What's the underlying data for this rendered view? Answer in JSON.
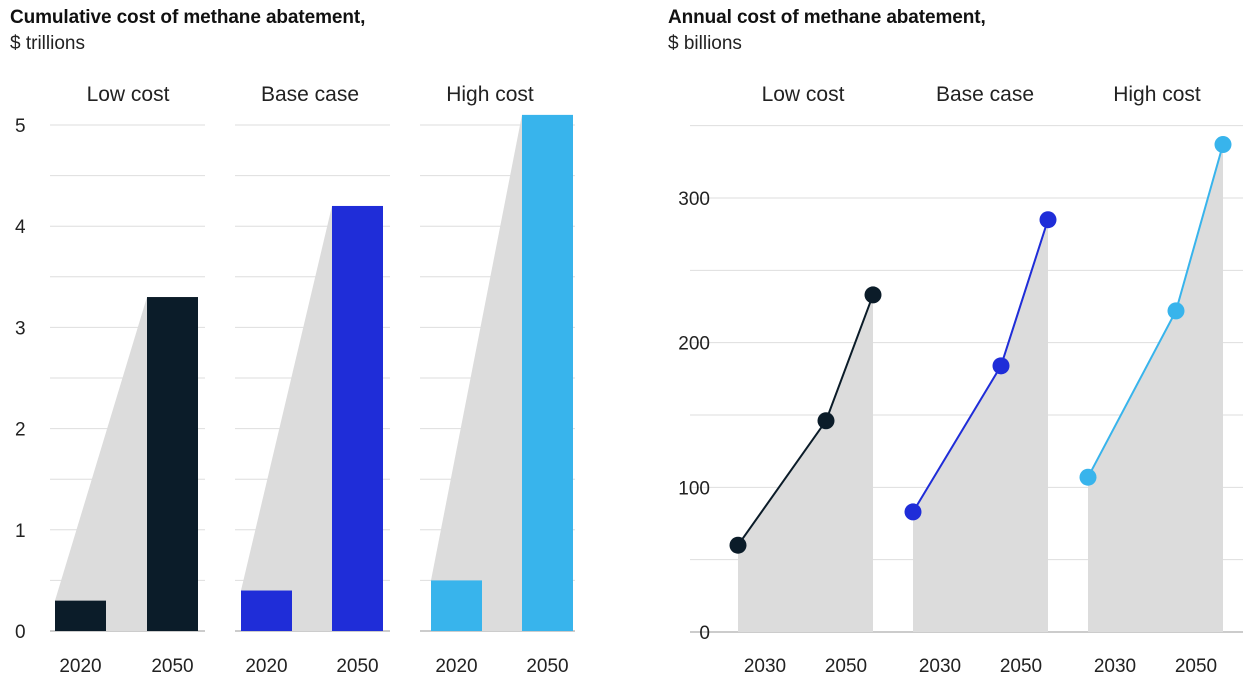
{
  "chart_data": [
    {
      "type": "bar",
      "title": "Cumulative cost of methane abatement,",
      "subtitle": "$ trillions",
      "ylim": [
        0,
        5
      ],
      "yticks": [
        "0",
        "1",
        "2",
        "3",
        "4",
        "5"
      ],
      "categories": [
        "2020",
        "2050"
      ],
      "panels": [
        {
          "label": "Low cost",
          "values": [
            0.3,
            3.3
          ],
          "color": "#0b1c29"
        },
        {
          "label": "Base case",
          "values": [
            0.4,
            4.2
          ],
          "color": "#1f2dd8"
        },
        {
          "label": "High cost",
          "values": [
            0.5,
            5.1
          ],
          "color": "#38b4ec"
        }
      ]
    },
    {
      "type": "line",
      "title": "Annual cost of methane abatement,",
      "subtitle": "$ billions",
      "ylim": [
        0,
        350
      ],
      "yticks": [
        "0",
        "100",
        "200",
        "300"
      ],
      "x_labels": [
        "2030",
        "2050"
      ],
      "panels": [
        {
          "label": "Low cost",
          "values": [
            60,
            146,
            233
          ],
          "color": "#0b1c29"
        },
        {
          "label": "Base case",
          "values": [
            83,
            184,
            285
          ],
          "color": "#1f2dd8"
        },
        {
          "label": "High cost",
          "values": [
            107,
            222,
            337
          ],
          "color": "#38b4ec"
        }
      ]
    }
  ]
}
